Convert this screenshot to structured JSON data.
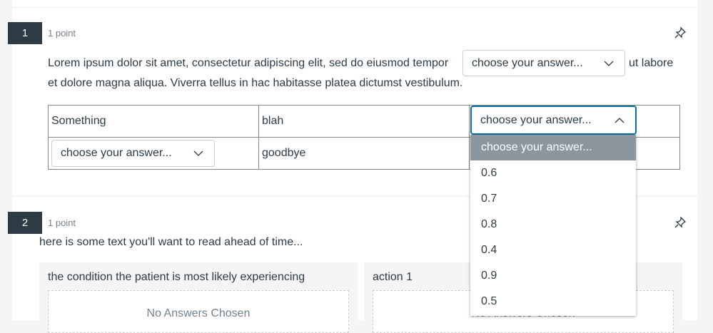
{
  "questions": [
    {
      "number": "1",
      "points": "1 point",
      "text_before": "Lorem ipsum dolor sit amet, consectetur adipiscing elit, sed do eiusmod tempor",
      "inline_select": "choose your answer...",
      "text_after_1": "ut labore",
      "text_after_2": "et dolore magna aliqua. Viverra tellus in hac habitasse platea dictumst vestibulum.",
      "table": {
        "r1c1": "Something",
        "r1c2": "blah",
        "r1c3_select": "choose your answer...",
        "r2c1_select": "choose your answer...",
        "r2c2": "goodbye"
      },
      "dropdown_options": [
        "choose your answer...",
        "0.6",
        "0.7",
        "0.8",
        "0.4",
        "0.9",
        "0.5"
      ]
    },
    {
      "number": "2",
      "points": "1 point",
      "text": "here is some text you'll want to read ahead of time...",
      "boxes": [
        {
          "label": "the condition the patient is most likely experiencing",
          "empty": "No Answers Chosen"
        },
        {
          "label": "action 1",
          "empty": "No Answers Chosen"
        }
      ]
    }
  ],
  "colors": {
    "badge": "#2d3b45",
    "focus": "#0770a3",
    "highlight": "#8b969e"
  }
}
